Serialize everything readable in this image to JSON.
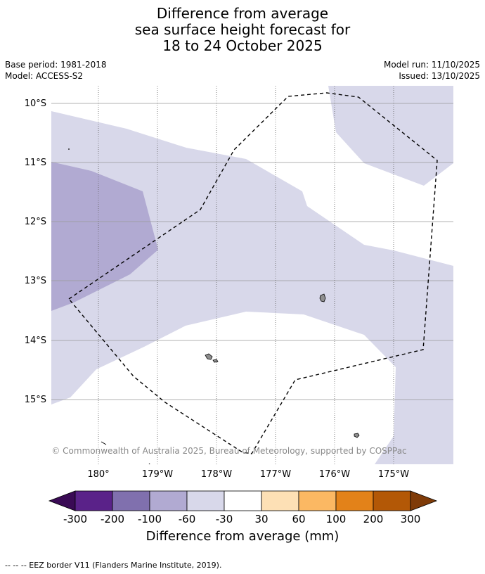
{
  "title": {
    "line1": "Difference from average",
    "line2": "sea surface height forecast for",
    "line3": "18 to 24 October 2025"
  },
  "meta_left": {
    "base_period": "Base period: 1981-2018",
    "model": "Model: ACCESS-S2"
  },
  "meta_right": {
    "model_run": "Model run: 11/10/2025",
    "issued": "Issued: 13/10/2025"
  },
  "lat_labels": [
    "10°S",
    "11°S",
    "12°S",
    "13°S",
    "14°S",
    "15°S"
  ],
  "lon_labels": [
    "180°",
    "179°W",
    "178°W",
    "177°W",
    "176°W",
    "175°W"
  ],
  "copyright": "© Commonwealth of Australia 2025, Bureau of Meteorology, supported by COSPPac",
  "colorbar": {
    "title": "Difference from average (mm)",
    "ticks": [
      "-300",
      "-200",
      "-100",
      "-60",
      "-30",
      "30",
      "60",
      "100",
      "200",
      "300"
    ],
    "colors": {
      "below_min": "#3a0a55",
      "c1": "#5a2289",
      "c2": "#8070ae",
      "c3": "#b1aad2",
      "c4": "#d8d8ea",
      "c5": "#ffffff",
      "c6": "#fde0b5",
      "c7": "#fbb863",
      "c8": "#e38219",
      "c9": "#b35806",
      "above_max": "#7f3b08"
    }
  },
  "footnote": "-- -- -- EEZ border V11 (Flanders Marine Institute, 2019)."
}
